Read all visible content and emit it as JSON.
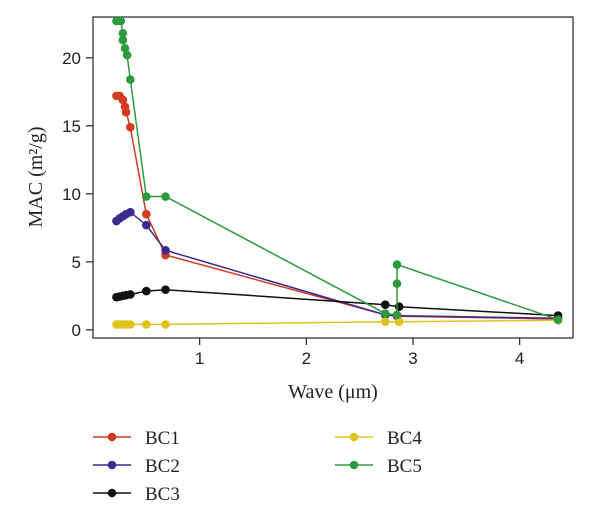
{
  "chart_data": {
    "type": "line",
    "title": "",
    "xlabel": "Wave (μm)",
    "ylabel": "MAC (m²/g)",
    "xlim": [
      0.0,
      4.5
    ],
    "ylim": [
      -0.6,
      23.0
    ],
    "xticks": [
      1,
      2,
      3,
      4
    ],
    "yticks": [
      0,
      5,
      10,
      15,
      20
    ],
    "xtick_labels": [
      "1",
      "2",
      "3",
      "4"
    ],
    "ytick_labels": [
      "0",
      "5",
      "10",
      "15",
      "20"
    ],
    "grid": false,
    "legend_position": "bottom",
    "series": [
      {
        "name": "BC1",
        "color": "#d33a22",
        "x": [
          0.22,
          0.25,
          0.28,
          0.3,
          0.31,
          0.35,
          0.5,
          0.68,
          2.74,
          2.85,
          4.36
        ],
        "y": [
          17.2,
          17.2,
          16.9,
          16.4,
          16.0,
          14.9,
          8.5,
          5.5,
          1.1,
          1.0,
          0.8
        ]
      },
      {
        "name": "BC2",
        "color": "#3a2a8e",
        "x": [
          0.22,
          0.25,
          0.28,
          0.31,
          0.35,
          0.5,
          0.68,
          2.74,
          2.85,
          4.36
        ],
        "y": [
          8.0,
          8.2,
          8.35,
          8.5,
          8.65,
          7.7,
          5.85,
          1.1,
          1.05,
          0.85
        ]
      },
      {
        "name": "BC3",
        "color": "#111111",
        "x": [
          0.22,
          0.25,
          0.28,
          0.31,
          0.35,
          0.5,
          0.68,
          2.74,
          2.87,
          4.36
        ],
        "y": [
          2.4,
          2.45,
          2.5,
          2.55,
          2.6,
          2.85,
          2.95,
          1.85,
          1.7,
          1.05
        ]
      },
      {
        "name": "BC4",
        "color": "#e0c21d",
        "x": [
          0.22,
          0.25,
          0.28,
          0.31,
          0.35,
          0.5,
          0.68,
          2.74,
          2.87,
          4.36
        ],
        "y": [
          0.4,
          0.4,
          0.4,
          0.4,
          0.4,
          0.4,
          0.4,
          0.6,
          0.6,
          0.7
        ]
      },
      {
        "name": "BC5",
        "color": "#2e9a3e",
        "x": [
          0.22,
          0.26,
          0.28,
          0.28,
          0.3,
          0.32,
          0.35,
          0.5,
          0.68,
          2.74,
          2.85,
          2.85,
          2.85,
          4.36
        ],
        "y": [
          22.7,
          22.7,
          21.8,
          21.3,
          20.7,
          20.2,
          18.4,
          9.8,
          9.8,
          1.2,
          1.1,
          3.4,
          4.8,
          0.75
        ]
      }
    ]
  }
}
